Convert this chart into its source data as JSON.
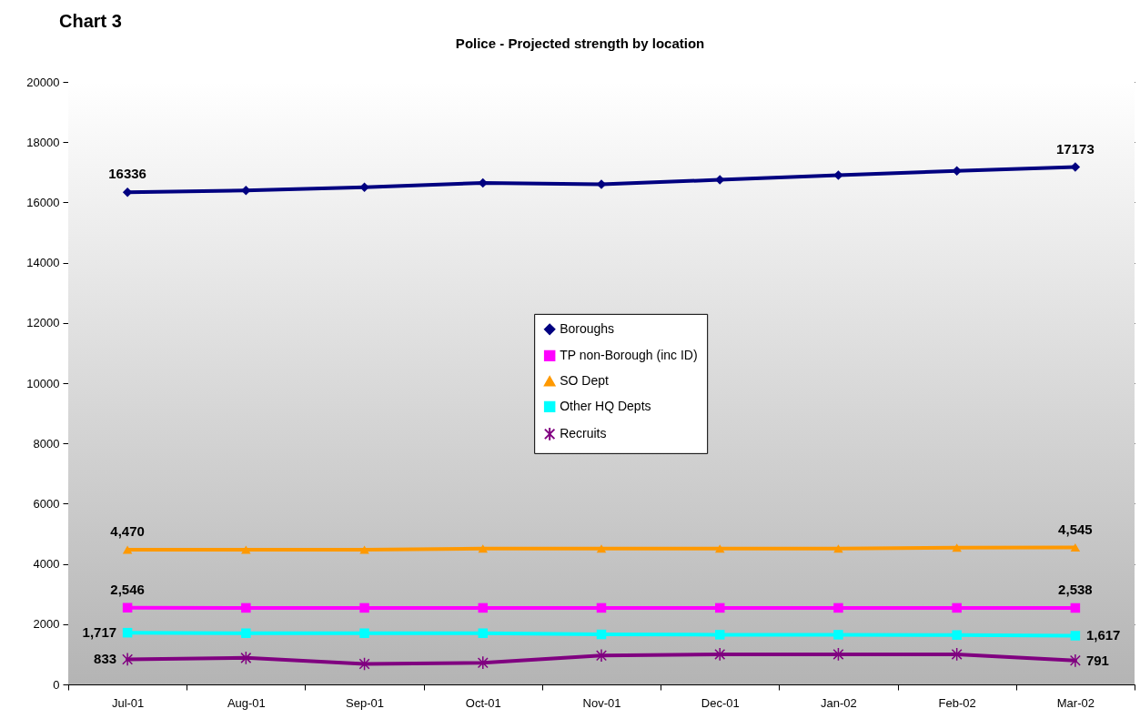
{
  "chart_data": {
    "type": "line",
    "title": "Chart 3",
    "subtitle": "Police - Projected strength by location",
    "categories": [
      "Jul-01",
      "Aug-01",
      "Sep-01",
      "Oct-01",
      "Nov-01",
      "Dec-01",
      "Jan-02",
      "Feb-02",
      "Mar-02"
    ],
    "series": [
      {
        "name": "Boroughs",
        "color": "#000080",
        "marker": "diamond",
        "values": [
          16336,
          16400,
          16500,
          16650,
          16600,
          16750,
          16900,
          17050,
          17173
        ],
        "value_labels": [
          "16336",
          null,
          null,
          null,
          null,
          null,
          null,
          null,
          "17173"
        ]
      },
      {
        "name": "TP non-Borough (inc ID)",
        "color": "#ff00ff",
        "marker": "square",
        "values": [
          2546,
          2540,
          2540,
          2540,
          2540,
          2540,
          2540,
          2540,
          2538
        ],
        "value_labels": [
          "2,546",
          null,
          null,
          null,
          null,
          null,
          null,
          null,
          "2,538"
        ]
      },
      {
        "name": "SO Dept",
        "color": "#ff9900",
        "marker": "triangle",
        "values": [
          4470,
          4470,
          4470,
          4510,
          4510,
          4510,
          4510,
          4540,
          4545
        ],
        "value_labels": [
          "4,470",
          null,
          null,
          null,
          null,
          null,
          null,
          null,
          "4,545"
        ]
      },
      {
        "name": "Other HQ Depts",
        "color": "#00ffff",
        "marker": "square",
        "values": [
          1717,
          1700,
          1700,
          1700,
          1660,
          1650,
          1650,
          1640,
          1617
        ],
        "value_labels": [
          "1,717",
          null,
          null,
          null,
          null,
          null,
          null,
          null,
          "1,617"
        ]
      },
      {
        "name": "Recruits",
        "color": "#800080",
        "marker": "cross",
        "values": [
          833,
          880,
          680,
          720,
          960,
          1000,
          1000,
          1000,
          791
        ],
        "value_labels": [
          "833",
          null,
          null,
          null,
          null,
          null,
          null,
          null,
          "791"
        ]
      }
    ],
    "ylim": [
      0,
      20000
    ],
    "yticks": [
      0,
      2000,
      4000,
      6000,
      8000,
      10000,
      12000,
      14000,
      16000,
      18000,
      20000
    ],
    "grid": "y",
    "legend": "center",
    "line_style": "solid"
  }
}
